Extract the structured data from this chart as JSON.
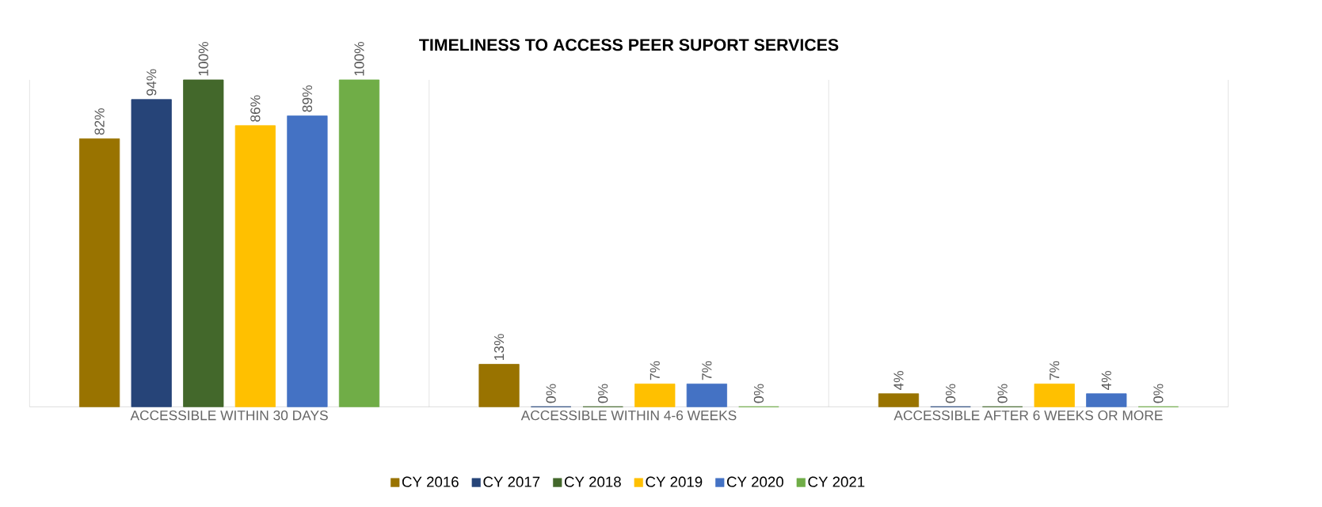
{
  "chart_data": {
    "type": "bar",
    "title": "TIMELINESS TO ACCESS PEER SUPORT SERVICES",
    "categories": [
      "ACCESSIBLE WITHIN 30 DAYS",
      "ACCESSIBLE WITHIN 4-6 WEEKS",
      "ACCESSIBLE AFTER 6 WEEKS OR MORE"
    ],
    "series": [
      {
        "name": "CY 2016",
        "color": "#997300",
        "values": [
          82,
          13,
          4
        ],
        "value_labels": [
          "82%",
          "13%",
          "4%"
        ]
      },
      {
        "name": "CY 2017",
        "color": "#264478",
        "values": [
          94,
          0,
          0
        ],
        "value_labels": [
          "94%",
          "0%",
          "0%"
        ]
      },
      {
        "name": "CY 2018",
        "color": "#43682b",
        "values": [
          100,
          0,
          0
        ],
        "value_labels": [
          "100%",
          "0%",
          "0%"
        ]
      },
      {
        "name": "CY 2019",
        "color": "#ffc000",
        "values": [
          86,
          7,
          7
        ],
        "value_labels": [
          "86%",
          "7%",
          "7%"
        ]
      },
      {
        "name": "CY 2020",
        "color": "#4472c4",
        "values": [
          89,
          7,
          4
        ],
        "value_labels": [
          "89%",
          "7%",
          "4%"
        ]
      },
      {
        "name": "CY 2021",
        "color": "#70ad47",
        "values": [
          100,
          0,
          0
        ],
        "value_labels": [
          "100%",
          "0%",
          "0%"
        ]
      }
    ],
    "grid": "x",
    "legend": "bottom"
  }
}
